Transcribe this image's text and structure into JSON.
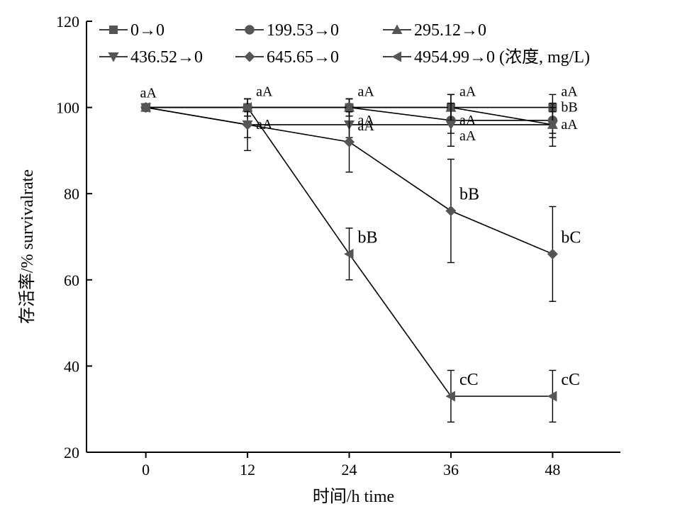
{
  "chart_data": {
    "type": "line",
    "xlabel": "时间/h time",
    "ylabel": "存活率/% survivalrate",
    "xlim": [
      -7,
      56
    ],
    "ylim": [
      20,
      120
    ],
    "x_ticks": [
      0,
      12,
      24,
      36,
      48
    ],
    "y_ticks": [
      20,
      40,
      60,
      80,
      100,
      120
    ],
    "x": [
      0,
      12,
      24,
      36,
      48
    ],
    "legend_position": "top",
    "colors": {
      "series": "#555555",
      "axis": "#000000"
    },
    "series": [
      {
        "name": "0→0",
        "marker": "square",
        "values": [
          100,
          100,
          100,
          100,
          100
        ],
        "errors": [
          0,
          0,
          2,
          3,
          3
        ]
      },
      {
        "name": "199.53→0",
        "marker": "circle",
        "values": [
          100,
          100,
          100,
          97,
          97
        ],
        "errors": [
          0,
          2,
          2,
          3,
          3
        ]
      },
      {
        "name": "295.12→0",
        "marker": "triangle-up",
        "values": [
          100,
          100,
          100,
          100,
          96
        ],
        "errors": [
          0,
          2,
          2,
          3,
          3
        ]
      },
      {
        "name": "436.52→0",
        "marker": "triangle-down",
        "values": [
          100,
          96,
          96,
          96,
          96
        ],
        "errors": [
          0,
          3,
          3,
          5,
          5
        ]
      },
      {
        "name": "645.65→0",
        "marker": "diamond",
        "values": [
          100,
          96,
          92,
          76,
          66
        ],
        "errors": [
          0,
          6,
          7,
          12,
          11
        ]
      },
      {
        "name": "4954.99→0 (浓度, mg/L)",
        "marker": "triangle-left",
        "values": [
          100,
          100,
          66,
          33,
          33
        ],
        "errors": [
          0,
          0,
          6,
          6,
          6
        ]
      }
    ],
    "annotations": [
      {
        "text": "aA",
        "x": 0,
        "y": 100,
        "size": "small",
        "anchor": "above"
      },
      {
        "text": "aA",
        "x": 12,
        "y": 100,
        "size": "small",
        "anchor": "upper-right"
      },
      {
        "text": "aA",
        "x": 12,
        "y": 96,
        "size": "small",
        "anchor": "right"
      },
      {
        "text": "aA",
        "x": 24,
        "y": 100,
        "size": "small",
        "anchor": "upper-right"
      },
      {
        "text": "aA",
        "x": 24,
        "y": 97,
        "size": "small",
        "anchor": "right"
      },
      {
        "text": "aA",
        "x": 24,
        "y": 92,
        "size": "small",
        "anchor": "upper-right"
      },
      {
        "text": "aA",
        "x": 36,
        "y": 100,
        "size": "small",
        "anchor": "upper-right"
      },
      {
        "text": "aA",
        "x": 36,
        "y": 97,
        "size": "small",
        "anchor": "right"
      },
      {
        "text": "aA",
        "x": 36,
        "y": 96,
        "size": "small",
        "anchor": "lower-right"
      },
      {
        "text": "aA",
        "x": 48,
        "y": 100,
        "size": "small",
        "anchor": "upper-right"
      },
      {
        "text": "bB",
        "x": 48,
        "y": 100,
        "size": "small",
        "anchor": "right"
      },
      {
        "text": "aA",
        "x": 48,
        "y": 96,
        "size": "small",
        "anchor": "right"
      },
      {
        "text": "bB",
        "x": 36,
        "y": 76,
        "size": "big",
        "anchor": "upper-right"
      },
      {
        "text": "bC",
        "x": 48,
        "y": 66,
        "size": "big",
        "anchor": "upper-right"
      },
      {
        "text": "bB",
        "x": 24,
        "y": 66,
        "size": "big",
        "anchor": "upper-right"
      },
      {
        "text": "cC",
        "x": 36,
        "y": 33,
        "size": "big",
        "anchor": "upper-right"
      },
      {
        "text": "cC",
        "x": 48,
        "y": 33,
        "size": "big",
        "anchor": "upper-right"
      }
    ]
  }
}
